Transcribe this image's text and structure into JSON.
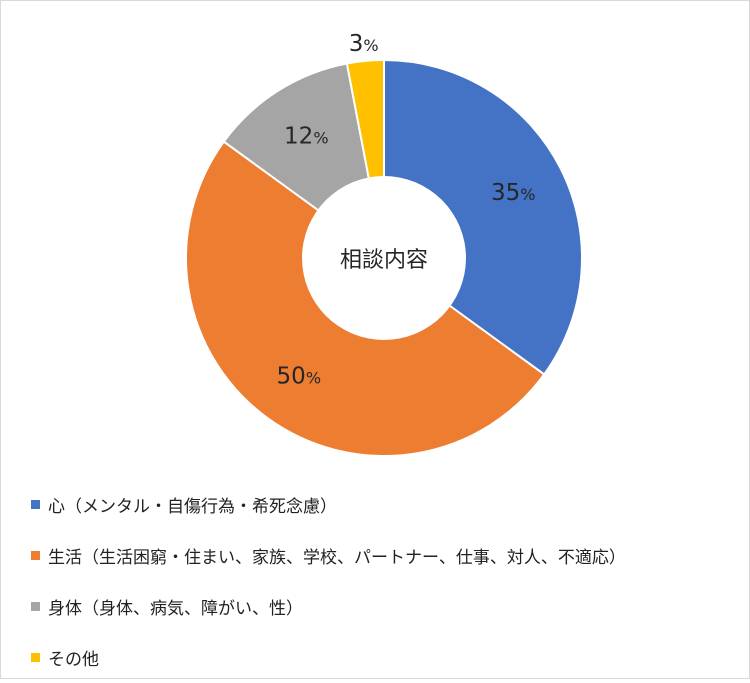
{
  "chart_data": {
    "type": "pie",
    "title": "",
    "center_label": "相談内容",
    "categories": [
      "心（メンタル・自傷行為・希死念慮）",
      "生活（生活困窮・住まい、家族、学校、パートナー、仕事、対人、不適応）",
      "身体（身体、病気、障がい、性）",
      "その他"
    ],
    "values": [
      35,
      50,
      12,
      3
    ],
    "value_labels": [
      "35%",
      "50%",
      "12%",
      "3%"
    ],
    "colors": [
      "#4472C4",
      "#ED7D31",
      "#A5A5A5",
      "#FFC000"
    ],
    "legend_position": "bottom-left",
    "donut": true
  }
}
